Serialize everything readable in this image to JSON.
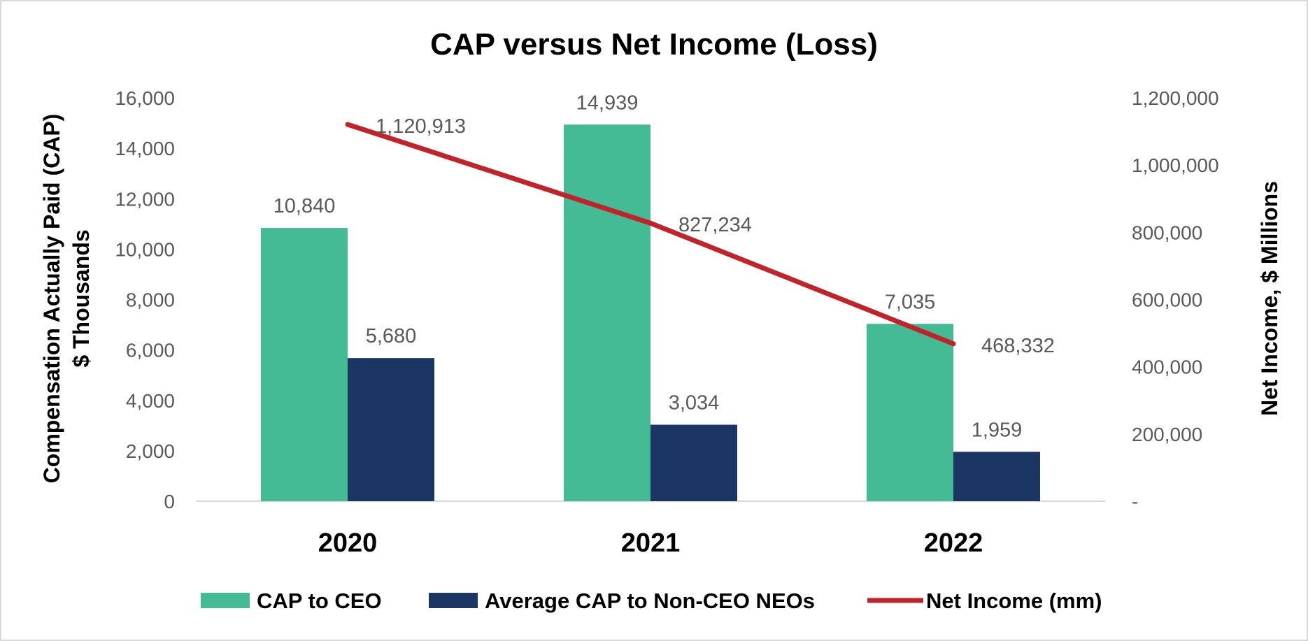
{
  "chart_data": {
    "type": "bar",
    "title": "CAP versus Net Income (Loss)",
    "categories": [
      "2020",
      "2021",
      "2022"
    ],
    "ylabel_lines": [
      "Compensation Actually Paid (CAP)",
      "$ Thousands"
    ],
    "y2label": "Net Income, $ Millions",
    "ylim": [
      0,
      16000
    ],
    "y2lim": [
      0,
      1200000
    ],
    "yticks": [
      "0",
      "2,000",
      "4,000",
      "6,000",
      "8,000",
      "10,000",
      "12,000",
      "14,000",
      "16,000"
    ],
    "y2ticks": [
      "-",
      "200,000",
      "400,000",
      "600,000",
      "800,000",
      "1,000,000",
      "1,200,000"
    ],
    "series": [
      {
        "name": "CAP to CEO",
        "type": "bar",
        "axis": "left",
        "color": "#44bb94",
        "values": [
          10840,
          14939,
          7035
        ],
        "labels": [
          "10,840",
          "14,939",
          "7,035"
        ]
      },
      {
        "name": "Average CAP to Non-CEO NEOs",
        "type": "bar",
        "axis": "left",
        "color": "#1c3664",
        "values": [
          5680,
          3034,
          1959
        ],
        "labels": [
          "5,680",
          "3,034",
          "1,959"
        ]
      },
      {
        "name": "Net Income (mm)",
        "type": "line",
        "axis": "right",
        "color": "#c0242a",
        "values": [
          1120913,
          827234,
          468332
        ],
        "labels": [
          "1,120,913",
          "827,234",
          "468,332"
        ]
      }
    ],
    "legend": "bottom"
  }
}
